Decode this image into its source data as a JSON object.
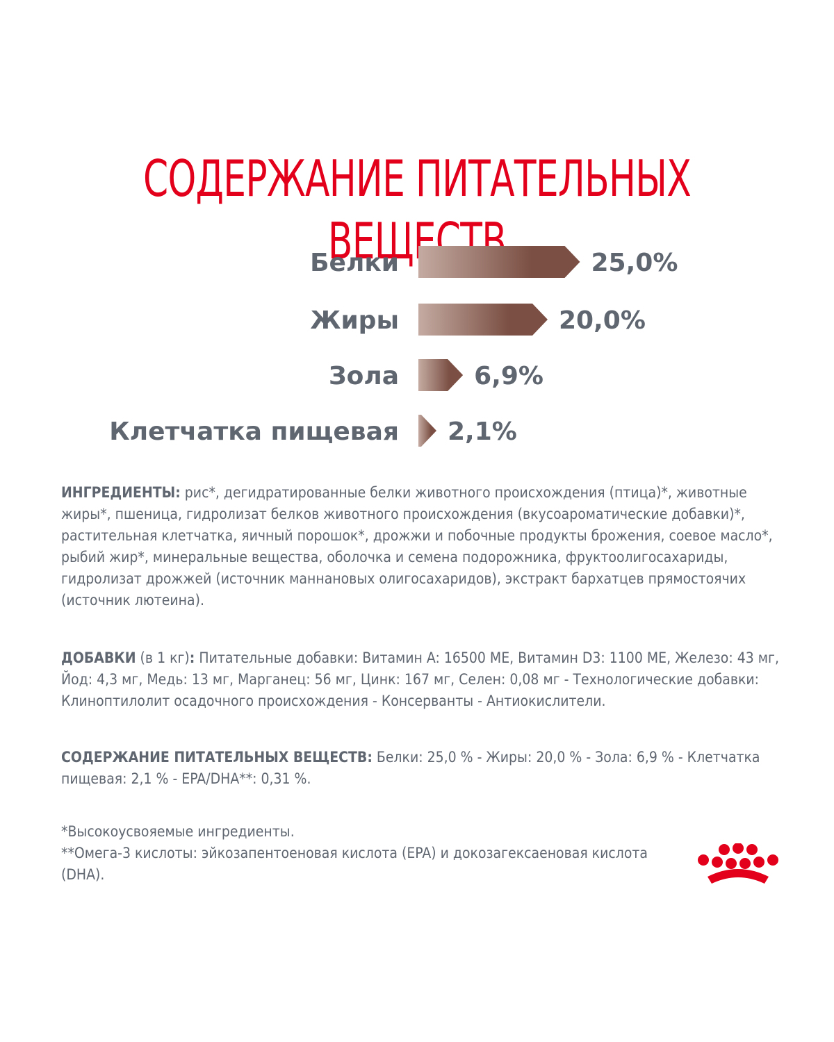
{
  "title": "СОДЕРЖАНИЕ ПИТАТЕЛЬНЫХ ВЕЩЕСТВ",
  "chart_data": {
    "type": "bar",
    "orientation": "horizontal",
    "categories": [
      "Белки",
      "Жиры",
      "Зола",
      "Клетчатка пищевая"
    ],
    "values": [
      25.0,
      20.0,
      6.9,
      2.1
    ],
    "value_labels": [
      "25,0%",
      "20,0%",
      "6,9%",
      "2,1%"
    ],
    "unit": "%",
    "title": "",
    "xlabel": "",
    "ylabel": "",
    "bar_gradient": [
      "#c4aba2",
      "#7b4f43"
    ],
    "label_color": "#5f6670"
  },
  "ingredients": {
    "label": "ИНГРЕДИЕНТЫ:",
    "text": " рис*, дегидратированные белки животного происхождения (птица)*, животные жиры*, пшеница, гидролизат белков животного происхождения (вкусоароматические добавки)*, растительная клетчатка, яичный порошок*, дрожжи и побочные продукты брожения, соевое масло*, рыбий жир*, минеральные вещества, оболочка и семена подорожника, фруктоолигосахариды, гидролизат дрожжей (источник маннановых олигосахаридов), экстракт бархатцев прямостоячих (источник лютеина)."
  },
  "additives": {
    "label": "ДОБАВКИ",
    "sub": " (в 1 кг)",
    "colon": ":",
    "text": " Питательные добавки: Витамин A: 16500 МЕ, Витамин D3: 1100 МЕ, Железо: 43 мг, Йод: 4,3 мг, Медь: 13 мг, Марганец: 56 мг, Цинк: 167 мг, Селен: 0,08 мг - Технологические добавки: Клиноптилолит осадочного происхождения - Консерванты - Антиокислители."
  },
  "nutrients": {
    "label": "СОДЕРЖАНИЕ ПИТАТЕЛЬНЫХ ВЕЩЕСТВ:",
    "text": " Белки: 25,0 % - Жиры: 20,0 % - Зола: 6,9 % - Клетчатка пищевая: 2,1 % - EPA/DHA**: 0,31 %."
  },
  "footnotes": [
    "*Высокоусвояемые ингредиенты.",
    "**Омега-3 кислоты: эйкозапентоеновая кислота (EPA) и докозагексаеновая кислота (DHA)."
  ],
  "brand_color": "#e2001a",
  "logo_icon": "royal-canin-crown-icon"
}
